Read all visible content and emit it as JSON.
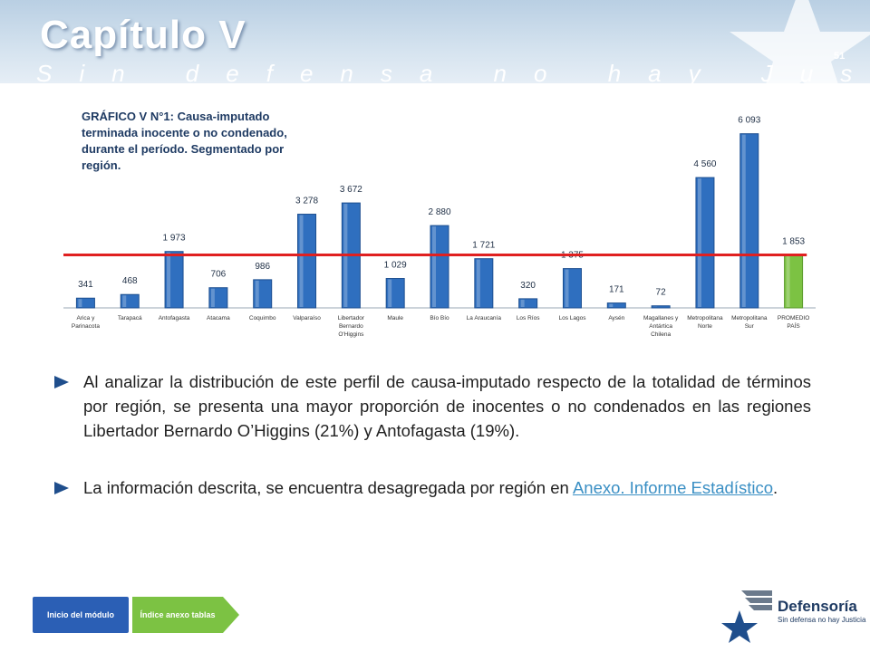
{
  "header": {
    "chapter_title": "Capítulo V",
    "motto": "Sin defensa no hay Justicia",
    "page_number": "51"
  },
  "chart_title": "GRÁFICO V N°1: Causa-imputado terminada inocente o no condenado, durante el período. Segmentado por región.",
  "chart_data": {
    "type": "bar",
    "title": "GRÁFICO V N°1: Causa-imputado terminada inocente o no condenado, durante el período. Segmentado por región.",
    "categories": [
      [
        "Arica y",
        "Parinacota"
      ],
      [
        "Tarapacá"
      ],
      [
        "Antofagasta"
      ],
      [
        "Atacama"
      ],
      [
        "Coquimbo"
      ],
      [
        "Valparaíso"
      ],
      [
        "Libertador",
        "Bernardo",
        "O'Higgins"
      ],
      [
        "Maule"
      ],
      [
        "Bío Bío"
      ],
      [
        "La Araucanía"
      ],
      [
        "Los Ríos"
      ],
      [
        "Los Lagos"
      ],
      [
        "Aysén"
      ],
      [
        "Magallanes y",
        "Antártica",
        "Chilena"
      ],
      [
        "Metropolitana",
        "Norte"
      ],
      [
        "Metropolitana",
        "Sur"
      ],
      [
        "PROMEDIO",
        "PAÍS"
      ]
    ],
    "values": [
      341,
      468,
      1973,
      706,
      986,
      3278,
      3672,
      1029,
      2880,
      1721,
      320,
      1375,
      171,
      72,
      4560,
      6093,
      1853
    ],
    "value_labels": [
      "341",
      "468",
      "1 973",
      "706",
      "986",
      "3 278",
      "3 672",
      "1 029",
      "2 880",
      "1 721",
      "320",
      "1 375",
      "171",
      "72",
      "4 560",
      "6 093",
      "1 853"
    ],
    "average_line": 1853,
    "ylim": [
      0,
      6400
    ],
    "colors": {
      "bar": "#2f6fbf",
      "average_bar": "#7cc243",
      "average_line": "#e02020"
    },
    "grid": false,
    "legend": "none"
  },
  "bullets": [
    {
      "text": "Al analizar la distribución de este perfil de causa-imputado respecto de la totalidad de términos por región, se presenta una mayor proporción de inocentes o no condenados en las regiones Libertador Bernardo O’Higgins (21%) y Antofagasta (19%)."
    },
    {
      "text_before": "La información descrita, se encuentra desagregada por región en ",
      "link": "Anexo. Informe Estadístico",
      "text_after": "."
    }
  ],
  "nav": {
    "home_label": "Inicio del módulo",
    "index_label": "Índice anexo tablas"
  },
  "logo": {
    "name": "Defensoría",
    "tagline": "Sin defensa no hay Justicia"
  }
}
